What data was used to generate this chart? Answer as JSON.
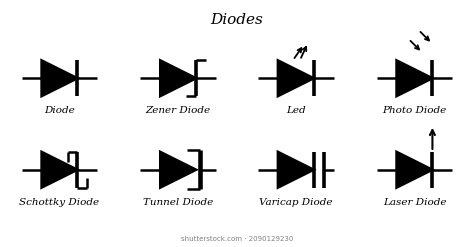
{
  "title": "Diodes",
  "bg_color": "#ffffff",
  "line_color": "#000000",
  "fill_color": "#000000",
  "lw": 1.8,
  "symbols": [
    {
      "name": "Diode",
      "col": 0,
      "row": 0,
      "type": "diode"
    },
    {
      "name": "Zener Diode",
      "col": 1,
      "row": 0,
      "type": "zener"
    },
    {
      "name": "Led",
      "col": 2,
      "row": 0,
      "type": "led"
    },
    {
      "name": "Photo Diode",
      "col": 3,
      "row": 0,
      "type": "photo"
    },
    {
      "name": "Schottky Diode",
      "col": 0,
      "row": 1,
      "type": "schottky"
    },
    {
      "name": "Tunnel Diode",
      "col": 1,
      "row": 1,
      "type": "tunnel"
    },
    {
      "name": "Varicap Diode",
      "col": 2,
      "row": 1,
      "type": "varicap"
    },
    {
      "name": "Laser Diode",
      "col": 3,
      "row": 1,
      "type": "laser"
    }
  ],
  "watermark": "shutterstock.com · 2090129230"
}
